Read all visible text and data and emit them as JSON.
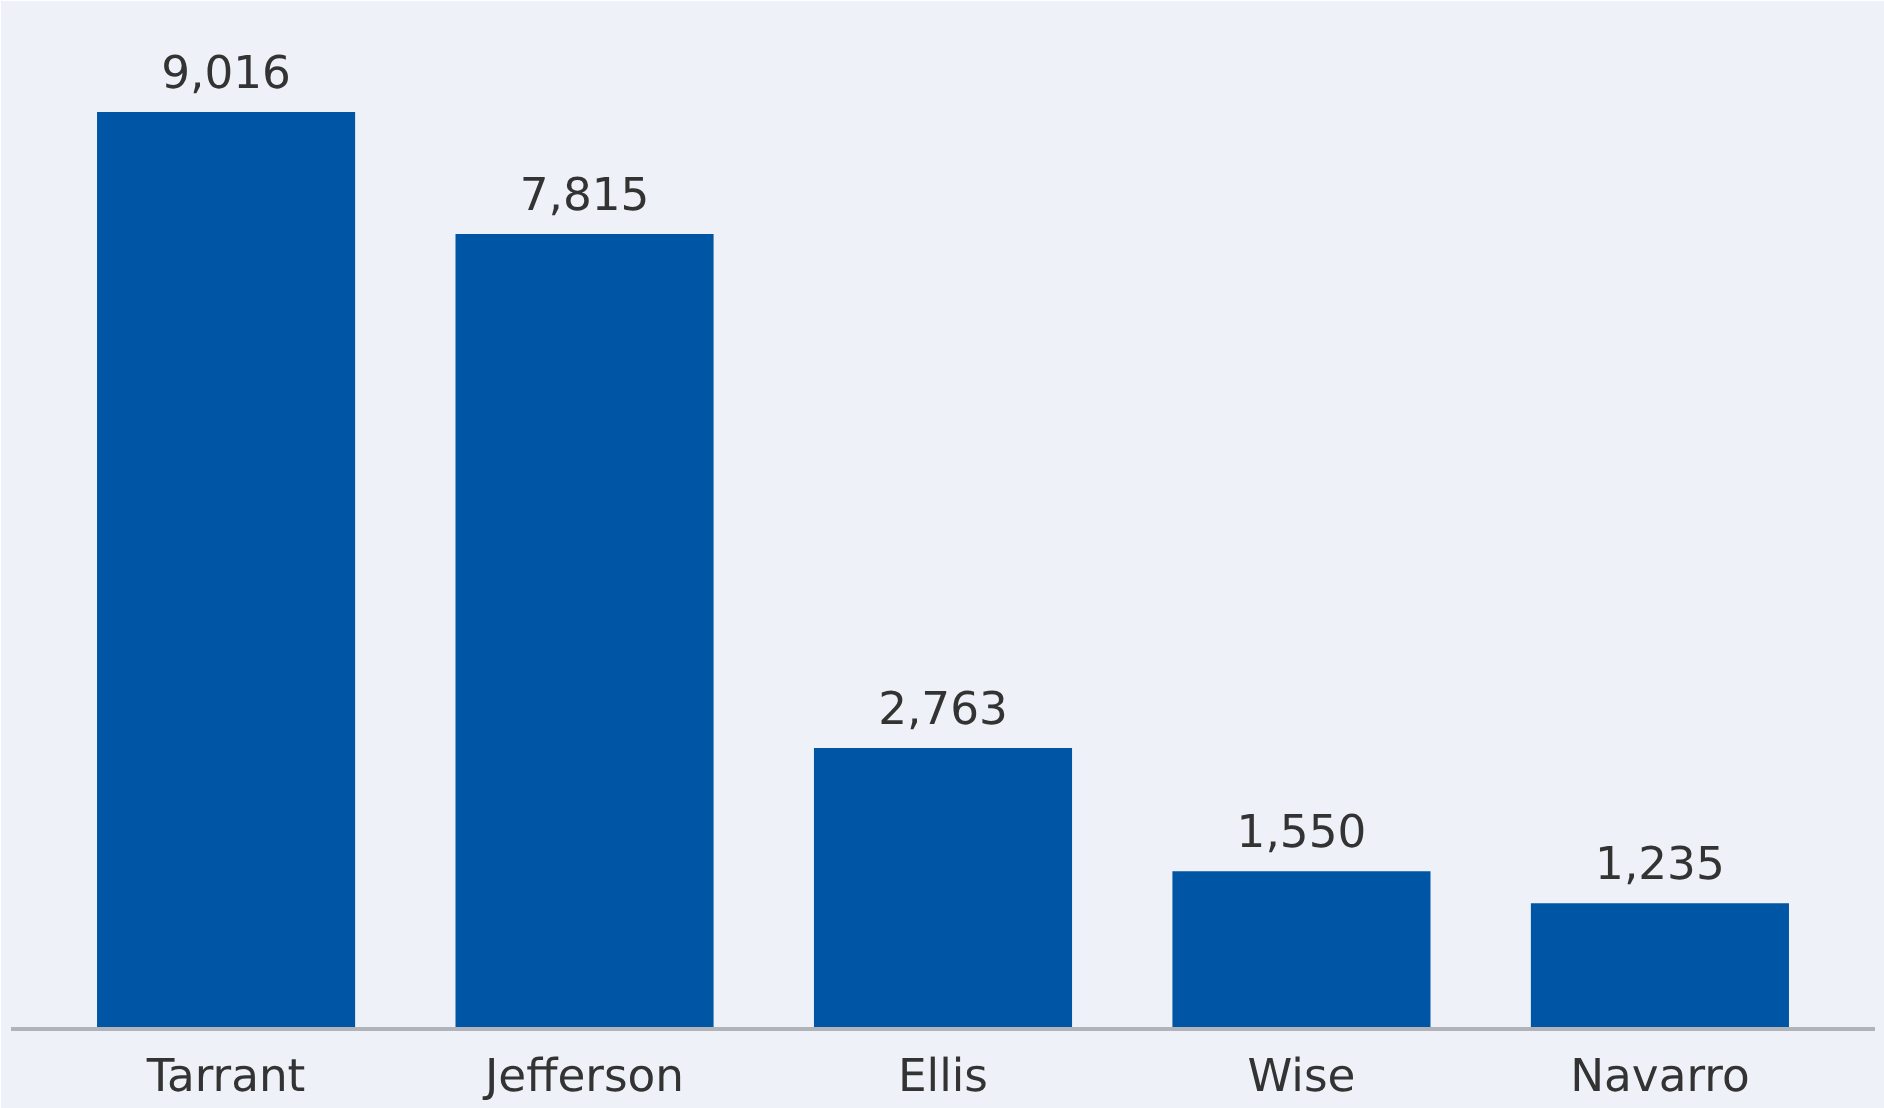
{
  "chart_data": {
    "type": "bar",
    "categories": [
      "Tarrant",
      "Jefferson",
      "Ellis",
      "Wise",
      "Navarro"
    ],
    "values": [
      9016,
      7815,
      2763,
      1550,
      1235
    ],
    "value_labels": [
      "9,016",
      "7,815",
      "2,763",
      "1,550",
      "1,235"
    ],
    "color": "#0055a5"
  }
}
